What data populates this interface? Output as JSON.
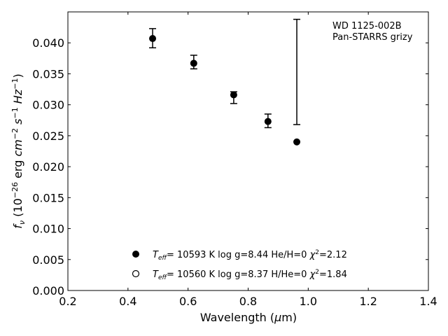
{
  "chart_data": {
    "type": "scatter",
    "title": "",
    "xlabel": "Wavelength (μm)",
    "ylabel": "f_ν (10^-26 erg cm^-2 s^-1 Hz^-1)",
    "xlim": [
      0.2,
      1.4
    ],
    "ylim": [
      0.0,
      0.045
    ],
    "xticks": [
      "0.2",
      "0.4",
      "0.6",
      "0.8",
      "1.0",
      "1.2",
      "1.4"
    ],
    "yticks": [
      "0.000",
      "0.005",
      "0.010",
      "0.015",
      "0.020",
      "0.025",
      "0.030",
      "0.035",
      "0.040"
    ],
    "grid": false,
    "annotation": [
      "WD 1125-002B",
      "Pan-STARRS grizy"
    ],
    "observed": {
      "x": [
        0.482,
        0.619,
        0.752,
        0.866,
        0.962
      ],
      "y": [
        0.0407,
        0.0367,
        0.0316,
        0.0273,
        0.024
      ],
      "yerr_low": [
        0.0392,
        0.0358,
        0.0302,
        0.0263,
        0.0268
      ],
      "yerr_high": [
        0.0423,
        0.038,
        0.0321,
        0.0285,
        0.0438
      ]
    },
    "legend": [
      {
        "marker": "filled",
        "label": "T_eff= 10593 K  log g=8.44  He/H=0  χ²=2.12"
      },
      {
        "marker": "open",
        "label": "T_eff= 10560 K  log g=8.37  H/He=0  χ²=1.84"
      }
    ],
    "legend_placement": "lower-center",
    "colors": {
      "marker": "#000000",
      "axes": "#000000",
      "background": "#ffffff"
    }
  }
}
